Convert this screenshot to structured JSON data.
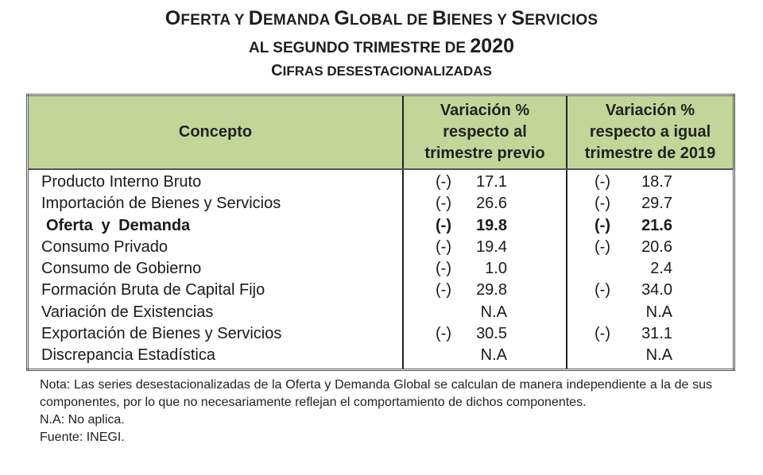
{
  "title": {
    "line1": "Oferta y Demanda Global de Bienes y Servicios",
    "line2": "al segundo trimestre de 2020",
    "line3": "Cifras desestacionalizadas"
  },
  "table": {
    "header_color": "#c4d59a",
    "columns": {
      "concept": "Concepto",
      "col1": [
        "Variación %",
        "respecto al",
        "trimestre previo"
      ],
      "col2": [
        "Variación %",
        "respecto a igual",
        "trimestre de 2019"
      ]
    },
    "rows": [
      {
        "concept": "Producto Interno Bruto",
        "sign1": "(-)",
        "val1": "17.1",
        "sign2": "(-)",
        "val2": "18.7",
        "bold": false
      },
      {
        "concept": "Importación de Bienes y Servicios",
        "sign1": "(-)",
        "val1": "26.6",
        "sign2": "(-)",
        "val2": "29.7",
        "bold": false
      },
      {
        "concept": "Oferta  y  Demanda",
        "sign1": "(-)",
        "val1": "19.8",
        "sign2": "(-)",
        "val2": "21.6",
        "bold": true
      },
      {
        "concept": "Consumo Privado",
        "sign1": "(-)",
        "val1": "19.4",
        "sign2": "(-)",
        "val2": "20.6",
        "bold": false
      },
      {
        "concept": "Consumo de Gobierno",
        "sign1": "(-)",
        "val1": "1.0",
        "sign2": "",
        "val2": "2.4",
        "bold": false
      },
      {
        "concept": "Formación Bruta de Capital Fijo",
        "sign1": "(-)",
        "val1": "29.8",
        "sign2": "(-)",
        "val2": "34.0",
        "bold": false
      },
      {
        "concept": "Variación de Existencias",
        "sign1": "",
        "val1": "N.A",
        "sign2": "",
        "val2": "N.A",
        "bold": false
      },
      {
        "concept": "Exportación de Bienes y Servicios",
        "sign1": "(-)",
        "val1": "30.5",
        "sign2": "(-)",
        "val2": "31.1",
        "bold": false
      },
      {
        "concept": "Discrepancia Estadística",
        "sign1": "",
        "val1": "N.A",
        "sign2": "",
        "val2": "N.A",
        "bold": false
      }
    ]
  },
  "notes": {
    "nota": "Nota: Las series desestacionalizadas de la Oferta y Demanda Global se calculan de manera independiente a la de sus componentes, por lo que no necesariamente reflejan el comportamiento de dichos componentes.",
    "na": "N.A: No aplica.",
    "fuente": "Fuente: INEGI."
  }
}
